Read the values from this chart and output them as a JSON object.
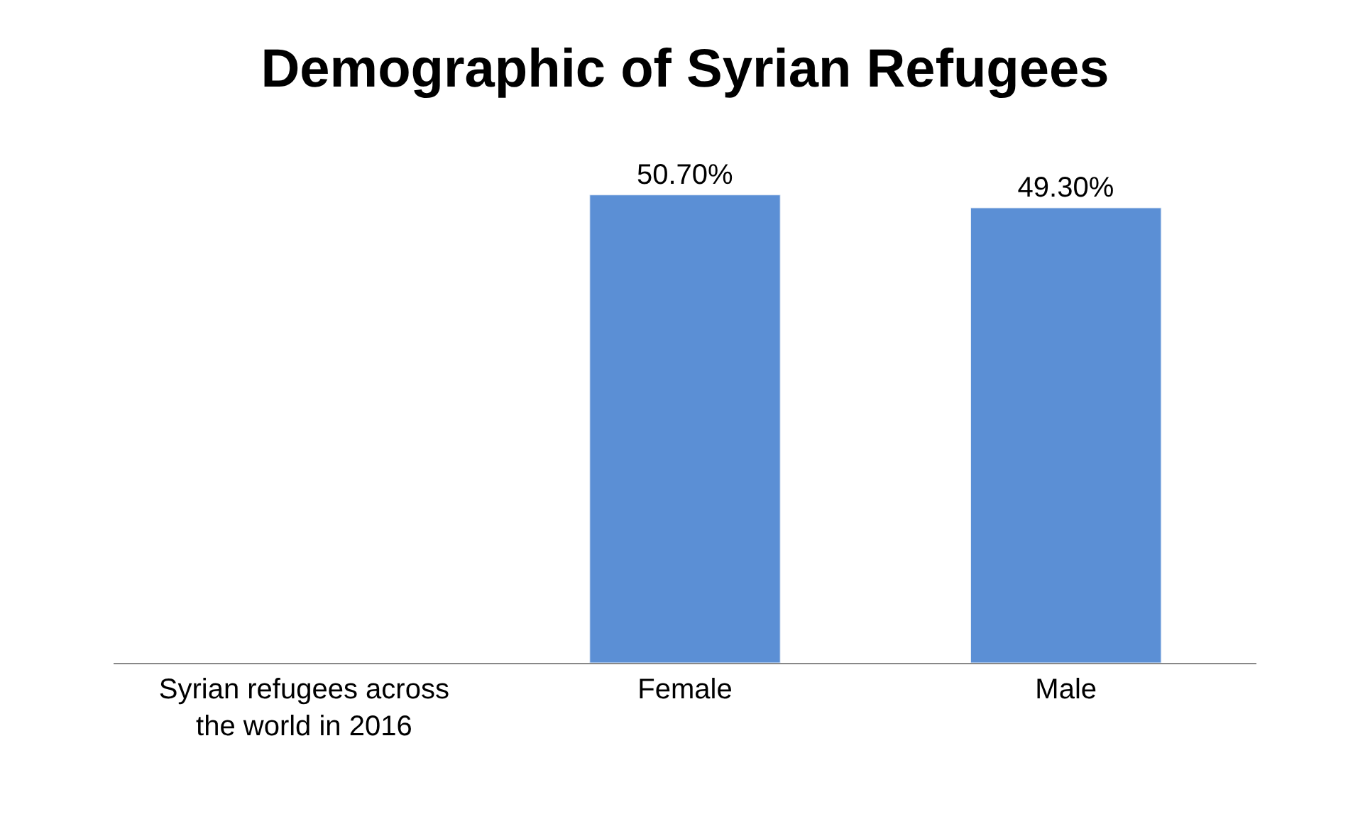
{
  "chart_data": {
    "type": "bar",
    "title": "Demographic of Syrian Refugees",
    "categories": [
      "Syrian refugees across the world in 2016",
      "Female",
      "Male"
    ],
    "values": [
      null,
      50.7,
      49.3
    ],
    "value_labels": [
      null,
      "50.70%",
      "49.30%"
    ],
    "color": "#5b8fd5"
  }
}
